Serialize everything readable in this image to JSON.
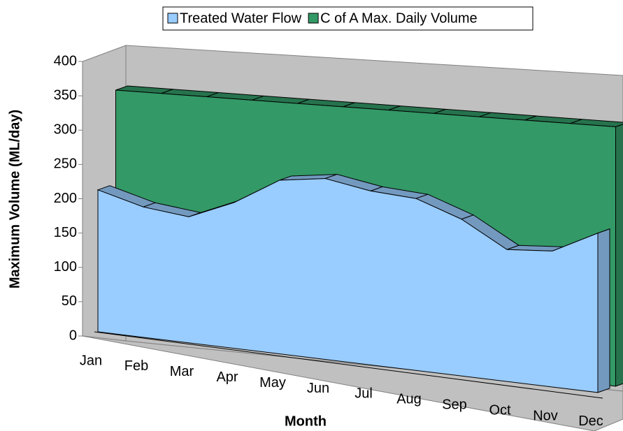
{
  "chart_data": {
    "type": "area3d",
    "categories": [
      "Jan",
      "Feb",
      "Mar",
      "Apr",
      "May",
      "Jun",
      "Jul",
      "Aug",
      "Sep",
      "Oct",
      "Nov",
      "Dec"
    ],
    "series": [
      {
        "name": "Treated Water Flow",
        "color": "#99ccff",
        "values": [
          211,
          192,
          184,
          211,
          249,
          257,
          245,
          240,
          217,
          181,
          185,
          215
        ]
      },
      {
        "name": "C of A Max. Daily Volume",
        "color": "#339966",
        "values": [
          350,
          350,
          350,
          350,
          350,
          350,
          350,
          350,
          350,
          350,
          350,
          350
        ]
      }
    ],
    "x_label": "Month",
    "y_label": "Maximum Volume (ML/day)",
    "ylim": [
      0,
      400
    ],
    "yticks": [
      0,
      50,
      100,
      150,
      200,
      250,
      300,
      350,
      400
    ],
    "legend": "top"
  }
}
